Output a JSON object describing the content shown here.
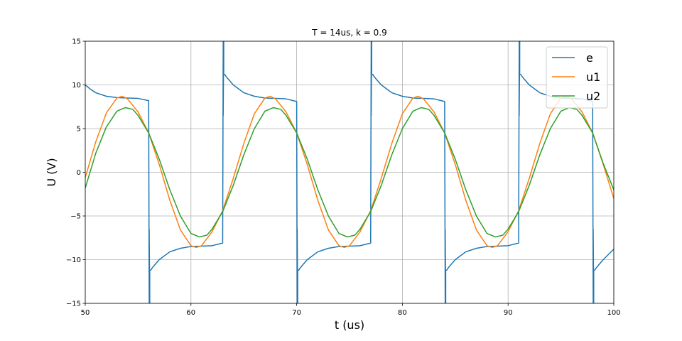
{
  "chart_data": {
    "type": "line",
    "title": "T = 14us, k = 0.9",
    "xlabel": "t (us)",
    "ylabel": "U (V)",
    "xlim": [
      50,
      100
    ],
    "ylim": [
      -15,
      15
    ],
    "xticks": [
      50,
      60,
      70,
      80,
      90,
      100
    ],
    "yticks": [
      -15,
      -10,
      -5,
      0,
      5,
      10,
      15
    ],
    "grid": true,
    "legend_position": "top-right",
    "series": [
      {
        "name": "e",
        "color": "#1f77b4",
        "x": [
          50,
          50.5,
          51,
          52,
          53,
          54,
          55,
          56,
          56.05,
          56.05,
          56.1,
          56.1,
          56.2,
          56.3,
          56.5,
          57,
          58,
          59,
          60,
          61,
          62,
          63,
          63.05,
          63.05,
          63.1,
          63.1,
          63.2,
          63.3,
          63.5,
          64,
          65,
          66,
          67,
          68,
          69,
          70,
          70.05,
          70.05,
          70.1,
          70.1,
          70.2,
          70.3,
          70.5,
          71,
          72,
          73,
          74,
          75,
          76,
          77,
          77.05,
          77.05,
          77.1,
          77.1,
          77.2,
          77.3,
          77.5,
          78,
          79,
          80,
          81,
          82,
          83,
          84,
          84.05,
          84.05,
          84.1,
          84.1,
          84.2,
          84.3,
          84.5,
          85,
          86,
          87,
          88,
          89,
          90,
          91,
          91.05,
          91.05,
          91.1,
          91.1,
          91.2,
          91.3,
          91.5,
          92,
          93,
          94,
          95,
          96,
          97,
          98,
          98.05,
          98.05,
          98.1,
          98.1,
          98.2,
          98.3,
          98.5,
          99,
          100
        ],
        "y": [
          10.0,
          9.5,
          9.1,
          8.7,
          8.55,
          8.5,
          8.45,
          8.2,
          -15,
          -6.5,
          -15,
          -11.2,
          -11.2,
          -11.0,
          -10.7,
          -10.0,
          -9.1,
          -8.7,
          -8.5,
          -8.45,
          -8.4,
          -8.1,
          15,
          6.5,
          15,
          11.2,
          11.2,
          11.0,
          10.7,
          10.0,
          9.1,
          8.7,
          8.5,
          8.45,
          8.4,
          8.1,
          -15,
          -6.5,
          -15,
          -11.2,
          -11.2,
          -11.0,
          -10.7,
          -10.0,
          -9.1,
          -8.7,
          -8.5,
          -8.45,
          -8.4,
          -8.1,
          15,
          6.5,
          15,
          11.2,
          11.2,
          11.0,
          10.7,
          10.0,
          9.1,
          8.7,
          8.5,
          8.45,
          8.4,
          8.1,
          -15,
          -6.5,
          -15,
          -11.2,
          -11.2,
          -11.0,
          -10.7,
          -10.0,
          -9.1,
          -8.7,
          -8.5,
          -8.45,
          -8.4,
          -8.1,
          15,
          6.5,
          15,
          11.2,
          11.2,
          11.0,
          10.7,
          10.0,
          9.1,
          8.7,
          8.5,
          8.45,
          8.4,
          8.1,
          -15,
          -6.5,
          -15,
          -11.2,
          -11.2,
          -11.0,
          -10.7,
          -10.0,
          -8.8
        ]
      },
      {
        "name": "u1",
        "color": "#ff7f0e",
        "x": [
          50,
          51,
          52,
          53,
          53.5,
          54,
          55,
          56,
          57,
          58,
          59,
          60,
          60.5,
          61,
          62,
          63,
          64,
          65,
          66,
          67,
          67.5,
          68,
          69,
          70,
          71,
          72,
          73,
          74,
          74.5,
          75,
          76,
          77,
          78,
          79,
          80,
          81,
          81.5,
          82,
          83,
          84,
          85,
          86,
          87,
          88,
          88.5,
          89,
          90,
          91,
          92,
          93,
          94,
          95,
          95.5,
          96,
          97,
          98,
          99,
          100
        ],
        "y": [
          -0.6,
          3.5,
          6.8,
          8.5,
          8.7,
          8.4,
          6.9,
          4.5,
          0.9,
          -3.2,
          -6.6,
          -8.4,
          -8.6,
          -8.4,
          -6.8,
          -4.4,
          -0.7,
          3.3,
          6.7,
          8.5,
          8.7,
          8.4,
          6.9,
          4.5,
          0.9,
          -3.2,
          -6.6,
          -8.4,
          -8.6,
          -8.4,
          -6.8,
          -4.4,
          -0.7,
          3.3,
          6.7,
          8.5,
          8.7,
          8.4,
          6.9,
          4.5,
          0.9,
          -3.2,
          -6.6,
          -8.4,
          -8.6,
          -8.4,
          -6.8,
          -4.4,
          -0.7,
          3.3,
          6.7,
          8.5,
          8.7,
          8.4,
          6.9,
          4.5,
          0.9,
          -3.0
        ]
      },
      {
        "name": "u2",
        "color": "#2ca02c",
        "x": [
          50,
          51,
          52,
          53,
          53.8,
          54.5,
          55,
          56,
          57,
          58,
          59,
          60,
          60.8,
          61.5,
          62,
          63,
          64,
          65,
          66,
          67,
          67.8,
          68.5,
          69,
          70,
          71,
          72,
          73,
          74,
          74.8,
          75.5,
          76,
          77,
          78,
          79,
          80,
          81,
          81.8,
          82.5,
          83,
          84,
          85,
          86,
          87,
          88,
          88.8,
          89.5,
          90,
          91,
          92,
          93,
          94,
          95,
          95.8,
          96.5,
          97,
          98,
          99,
          100
        ],
        "y": [
          -1.8,
          2.2,
          5.2,
          7.0,
          7.4,
          7.2,
          6.5,
          4.5,
          1.5,
          -2.0,
          -5.0,
          -7.0,
          -7.4,
          -7.2,
          -6.5,
          -4.5,
          -1.5,
          2.0,
          5.0,
          7.0,
          7.4,
          7.2,
          6.5,
          4.5,
          1.5,
          -2.0,
          -5.0,
          -7.0,
          -7.4,
          -7.2,
          -6.5,
          -4.5,
          -1.5,
          2.0,
          5.0,
          7.0,
          7.4,
          7.2,
          6.5,
          4.5,
          1.5,
          -2.0,
          -5.0,
          -7.0,
          -7.4,
          -7.2,
          -6.5,
          -4.5,
          -1.5,
          2.0,
          5.0,
          7.0,
          7.4,
          7.2,
          6.5,
          4.5,
          1.0,
          -2.0
        ]
      }
    ]
  }
}
